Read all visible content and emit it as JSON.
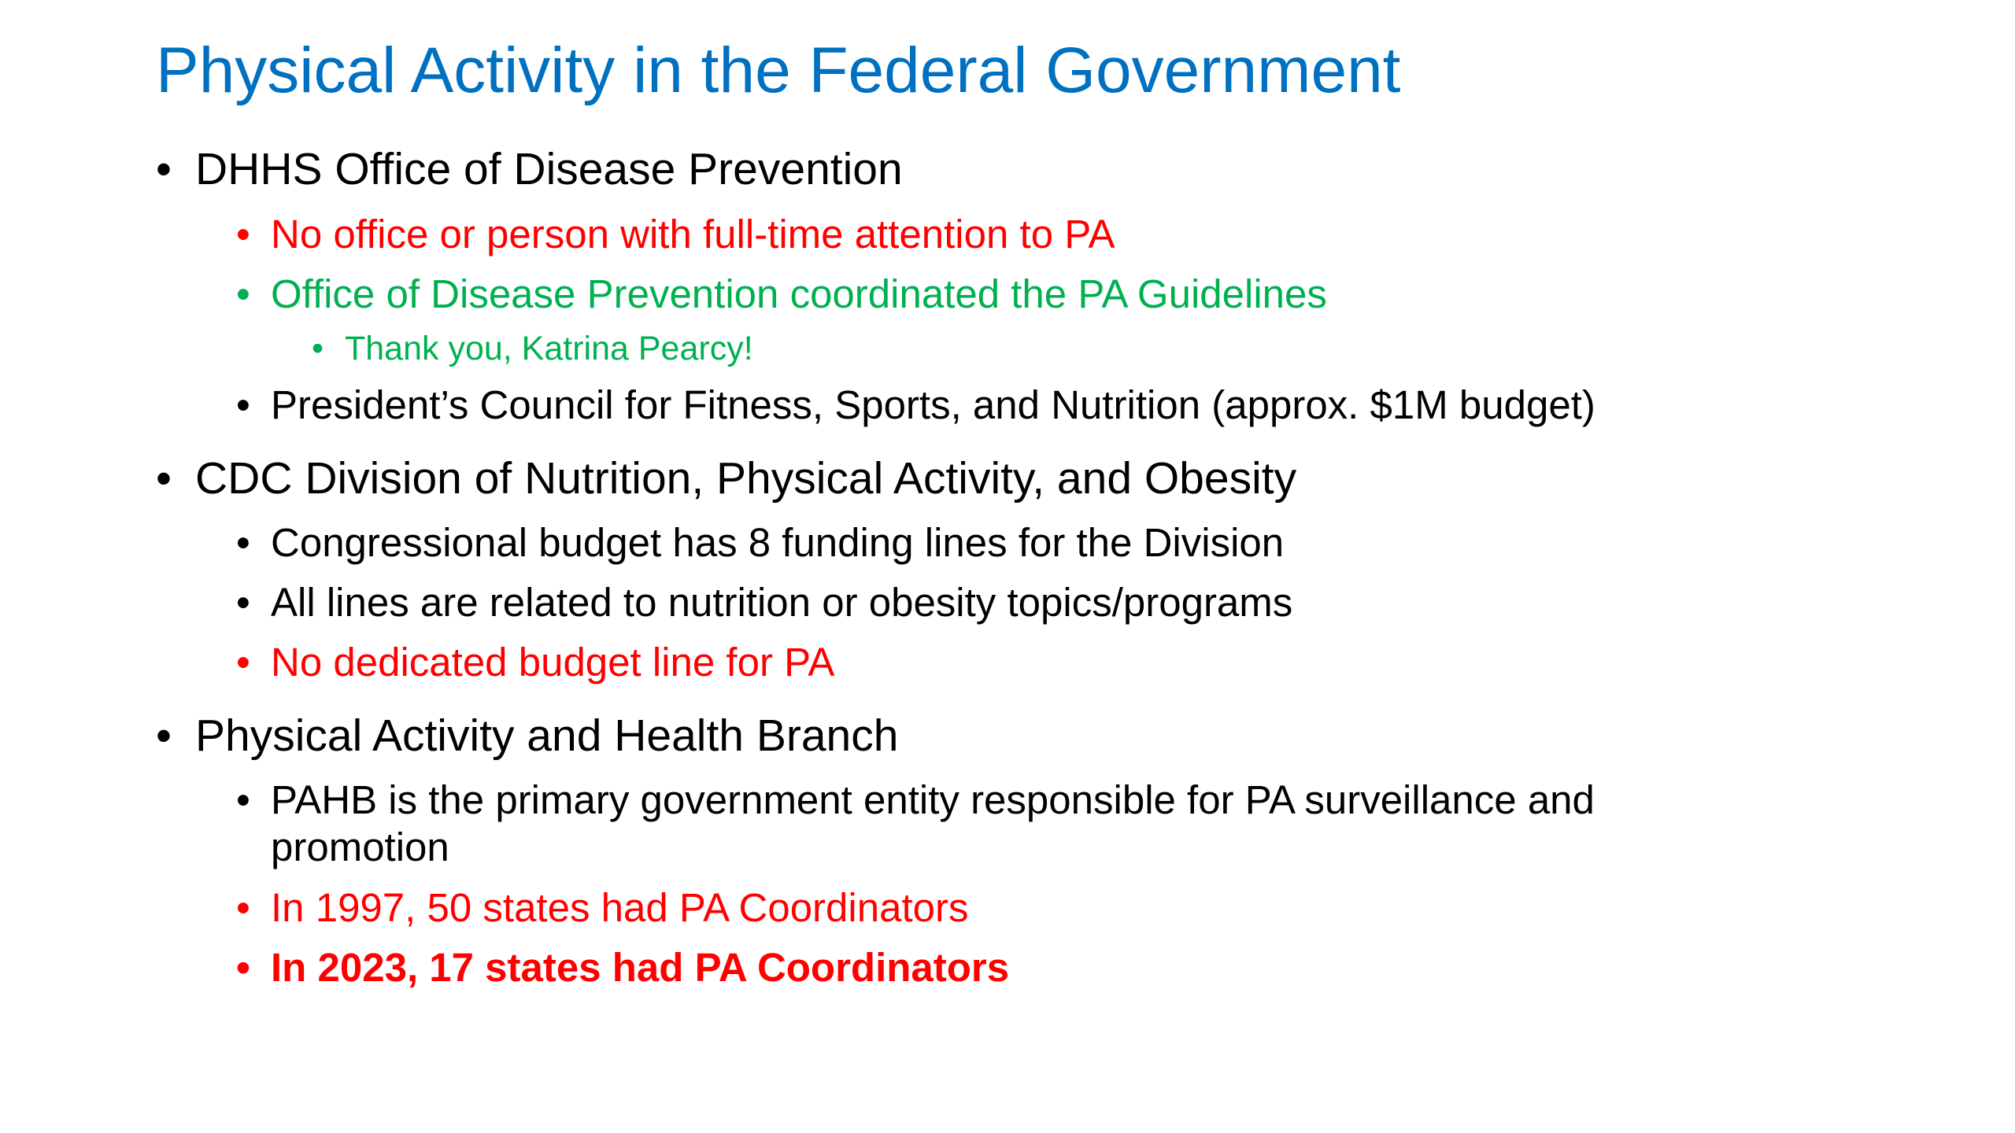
{
  "slide": {
    "title": "Physical Activity in the Federal Government",
    "colors": {
      "title": "#0070c0",
      "red": "#ff0000",
      "green": "#00b050",
      "text": "#000000"
    },
    "bullet": "•",
    "items": [
      {
        "text": "DHHS Office of Disease Prevention",
        "level": 1,
        "color": "black"
      },
      {
        "text": "No office or person with full-time attention to PA",
        "level": 2,
        "color": "red"
      },
      {
        "text": "Office of Disease Prevention coordinated the PA Guidelines",
        "level": 2,
        "color": "green"
      },
      {
        "text": "Thank you, Katrina Pearcy!",
        "level": 3,
        "color": "green"
      },
      {
        "text": "President’s Council for Fitness, Sports, and Nutrition (approx. $1M budget)",
        "level": 2,
        "color": "black"
      },
      {
        "text": "CDC Division of Nutrition, Physical Activity, and Obesity",
        "level": 1,
        "color": "black"
      },
      {
        "text": "Congressional budget has 8 funding lines for the Division",
        "level": 2,
        "color": "black"
      },
      {
        "text": "All lines are related to nutrition or obesity topics/programs",
        "level": 2,
        "color": "black"
      },
      {
        "text": "No dedicated budget line for PA",
        "level": 2,
        "color": "red"
      },
      {
        "text": "Physical Activity and Health Branch",
        "level": 1,
        "color": "black"
      },
      {
        "text": "PAHB is the primary government entity responsible for PA surveillance and",
        "continuation": "promotion",
        "level": 2,
        "color": "black"
      },
      {
        "text": "In 1997, 50 states had PA Coordinators",
        "level": 2,
        "color": "red"
      },
      {
        "text": "In 2023, 17 states had PA Coordinators",
        "level": 2,
        "color": "red",
        "bold": true
      }
    ]
  }
}
